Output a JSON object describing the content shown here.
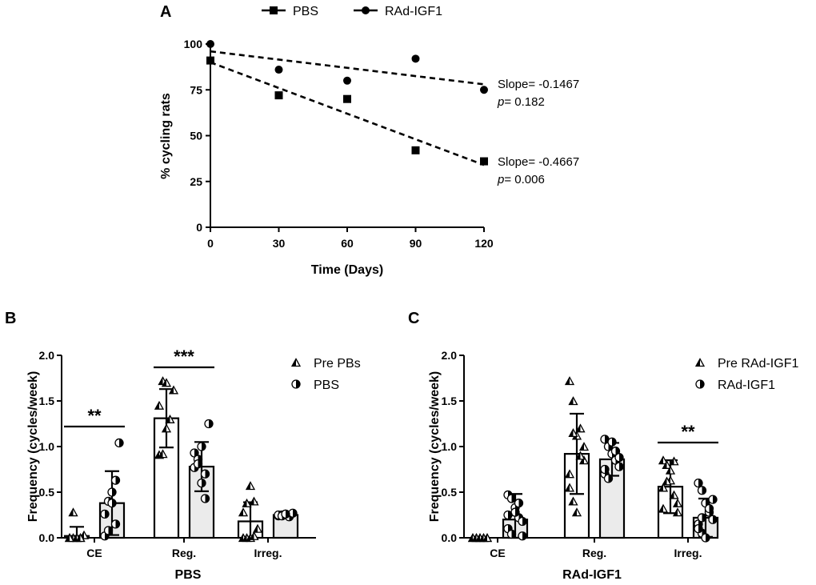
{
  "chart_data": [
    {
      "panel": "A",
      "type": "scatter",
      "xlabel": "Time (Days)",
      "ylabel": "% cycling rats",
      "xlim": [
        0,
        120
      ],
      "ylim": [
        0,
        100
      ],
      "xticks": [
        0,
        30,
        60,
        90,
        120
      ],
      "yticks": [
        0,
        25,
        50,
        75,
        100
      ],
      "series": [
        {
          "name": "PBS",
          "marker": "square",
          "x": [
            0,
            30,
            60,
            90,
            120
          ],
          "y": [
            91,
            72,
            70,
            42,
            36
          ],
          "fit": {
            "x0": 0,
            "y0": 90,
            "x1": 120,
            "y1": 34
          },
          "slope_text": "Slope= -0.4667",
          "p_prefix": "p",
          "p_text": "= 0.006"
        },
        {
          "name": "RAd-IGF1",
          "marker": "circle",
          "x": [
            0,
            30,
            60,
            90,
            120
          ],
          "y": [
            100,
            86,
            80,
            92,
            75
          ],
          "fit": {
            "x0": 0,
            "y0": 96,
            "x1": 120,
            "y1": 78
          },
          "slope_text": "Slope= -0.1467",
          "p_prefix": "p",
          "p_text": "= 0.182"
        }
      ]
    },
    {
      "panel": "B",
      "type": "bar",
      "title": "PBS",
      "ylabel": "Frequency (cycles/week)",
      "ylim": [
        0,
        2.0
      ],
      "yticks": [
        "0.0",
        "0.5",
        "1.0",
        "1.5",
        "2.0"
      ],
      "categories": [
        "CE",
        "Reg.",
        "Irreg."
      ],
      "series": [
        {
          "name": "Pre PBs",
          "marker": "half-triangle",
          "fill": "#ffffff",
          "values": [
            0.02,
            1.31,
            0.18
          ],
          "sd": [
            0.1,
            0.32,
            0.21
          ],
          "points": [
            [
              0,
              0,
              0,
              0,
              0.03,
              0,
              0.28,
              0,
              0
            ],
            [
              0.91,
              1.72,
              1.2,
              1.3,
              1.62,
              1.45,
              0.92,
              1.7
            ],
            [
              0,
              0,
              0.57,
              0.4,
              0.1,
              0.28,
              0.38,
              0,
              0.02
            ]
          ]
        },
        {
          "name": "PBS",
          "marker": "half-circle",
          "fill": "#ebebeb",
          "values": [
            0.38,
            0.78,
            0.25
          ],
          "sd": [
            0.35,
            0.27,
            0.02
          ],
          "points": [
            [
              0.02,
              0.4,
              0.5,
              0.63,
              1.04,
              0.26,
              0.08,
              0.38,
              0.15
            ],
            [
              0.93,
              0.86,
              0.6,
              0.43,
              1.25,
              0.77,
              0.81,
              1.0,
              0.7
            ],
            [
              0.24,
              0.25,
              0.26,
              0.23,
              0.27,
              0.25,
              0.24,
              0.26
            ]
          ]
        }
      ],
      "significance": [
        {
          "category": "CE",
          "label": "**"
        },
        {
          "category": "Reg.",
          "label": "***"
        }
      ]
    },
    {
      "panel": "C",
      "type": "bar",
      "title": "RAd-IGF1",
      "ylabel": "Frequency (cycles/week)",
      "ylim": [
        0,
        2.0
      ],
      "yticks": [
        "0.0",
        "0.5",
        "1.0",
        "1.5",
        "2.0"
      ],
      "categories": [
        "CE",
        "Reg.",
        "Irreg."
      ],
      "series": [
        {
          "name": "Pre RAd-IGF1",
          "marker": "half-triangle",
          "fill": "#ffffff",
          "values": [
            0.0,
            0.92,
            0.56
          ],
          "sd": [
            0.0,
            0.44,
            0.29
          ],
          "points": [
            [
              0,
              0,
              0,
              0,
              0,
              0,
              0,
              0,
              0,
              0
            ],
            [
              1.72,
              1.5,
              1.12,
              1.2,
              0.85,
              0.7,
              0.4,
              0.28,
              0.9,
              1.0,
              0.55,
              1.15
            ],
            [
              0.85,
              0.8,
              0.63,
              0.47,
              0.38,
              0.32,
              0.62,
              0.74,
              0.84,
              0.28,
              0.55
            ]
          ]
        },
        {
          "name": "RAd-IGF1",
          "marker": "half-circle",
          "fill": "#ebebeb",
          "values": [
            0.2,
            0.86,
            0.22
          ],
          "sd": [
            0.28,
            0.18,
            0.21
          ],
          "points": [
            [
              0.47,
              0.43,
              0.33,
              0.22,
              0.18,
              0.1,
              0.04,
              0.28,
              0.38,
              0.02,
              0.25
            ],
            [
              1.08,
              1.0,
              0.92,
              0.85,
              0.78,
              0.7,
              0.65,
              1.05,
              0.95,
              0.88,
              0.75
            ],
            [
              0.6,
              0.52,
              0.38,
              0.28,
              0.2,
              0.15,
              0.05,
              0.0,
              0.32,
              0.42,
              0.1,
              0.22
            ]
          ]
        }
      ],
      "significance": [
        {
          "category": "Irreg.",
          "label": "**"
        }
      ]
    }
  ]
}
